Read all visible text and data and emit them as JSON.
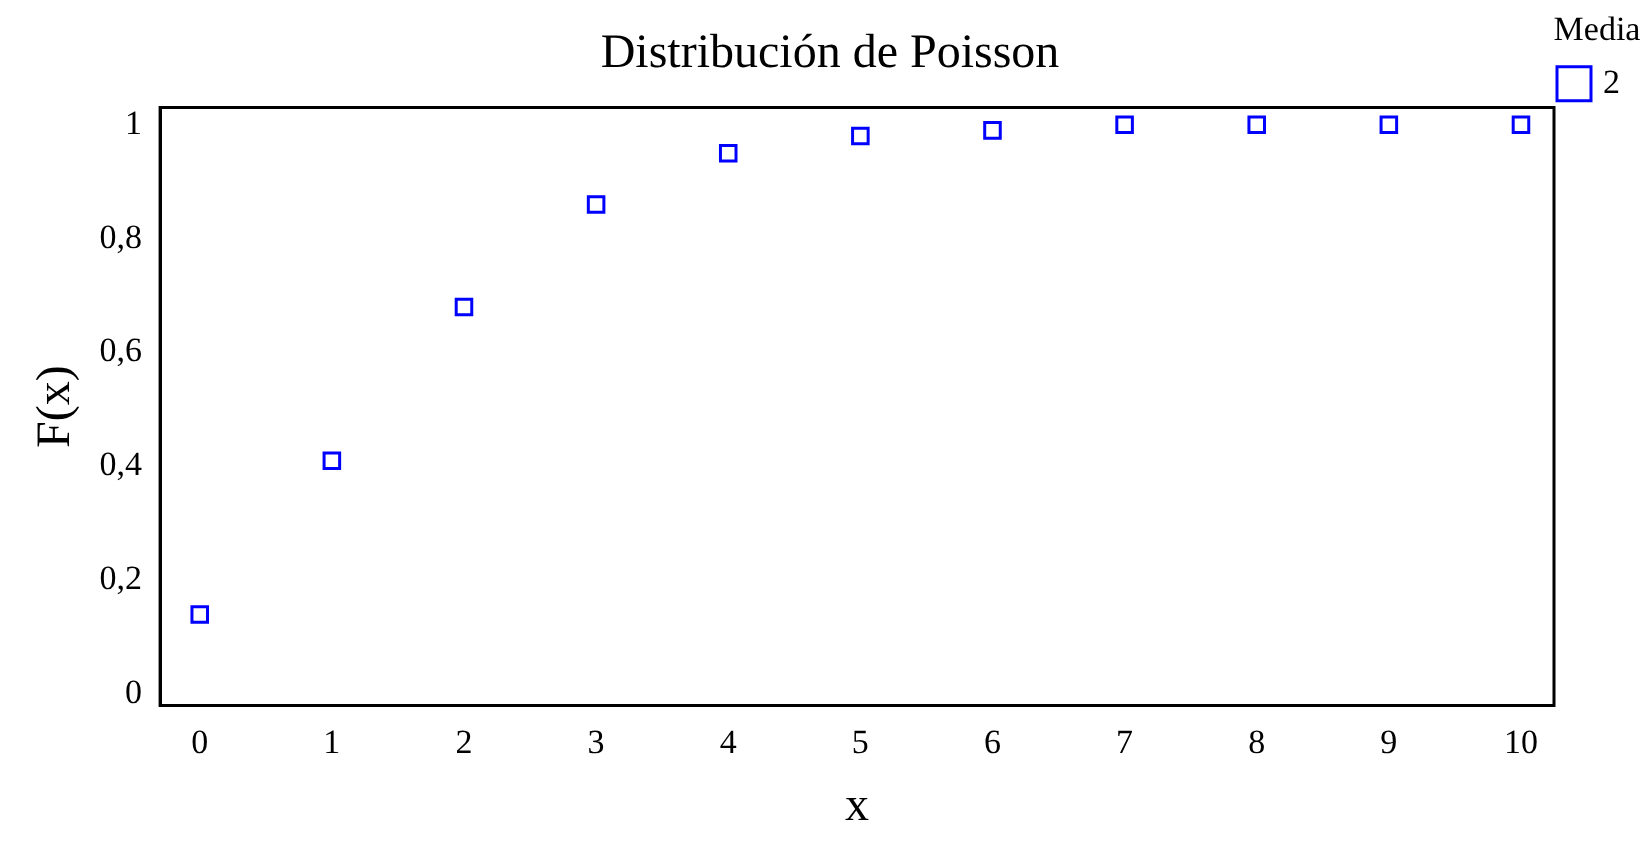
{
  "chart_data": {
    "type": "scatter",
    "title": "Distribución de Poisson",
    "xlabel": "x",
    "ylabel": "F(x)",
    "legend_title": "Media",
    "legend": "top right",
    "marker": "square",
    "grid": false,
    "x": [
      0,
      1,
      2,
      3,
      4,
      5,
      6,
      7,
      8,
      9,
      10
    ],
    "series": [
      {
        "name": "2",
        "color": "#0000ff",
        "values": [
          0.14,
          0.41,
          0.68,
          0.86,
          0.95,
          0.98,
          0.99,
          1.0,
          1.0,
          1.0,
          1.0
        ]
      }
    ],
    "xlim": [
      -0.3,
      10.25
    ],
    "xticks": [
      0,
      1,
      2,
      3,
      4,
      5,
      6,
      7,
      8,
      9,
      10
    ],
    "ylim": [
      -0.02,
      1.03
    ],
    "yticks": [
      0,
      {
        "value": 0.2,
        "label": "0,2"
      },
      {
        "value": 0.4,
        "label": "0,4"
      },
      {
        "value": 0.6,
        "label": "0,6"
      },
      {
        "value": 0.8,
        "label": "0,8"
      },
      1
    ]
  }
}
